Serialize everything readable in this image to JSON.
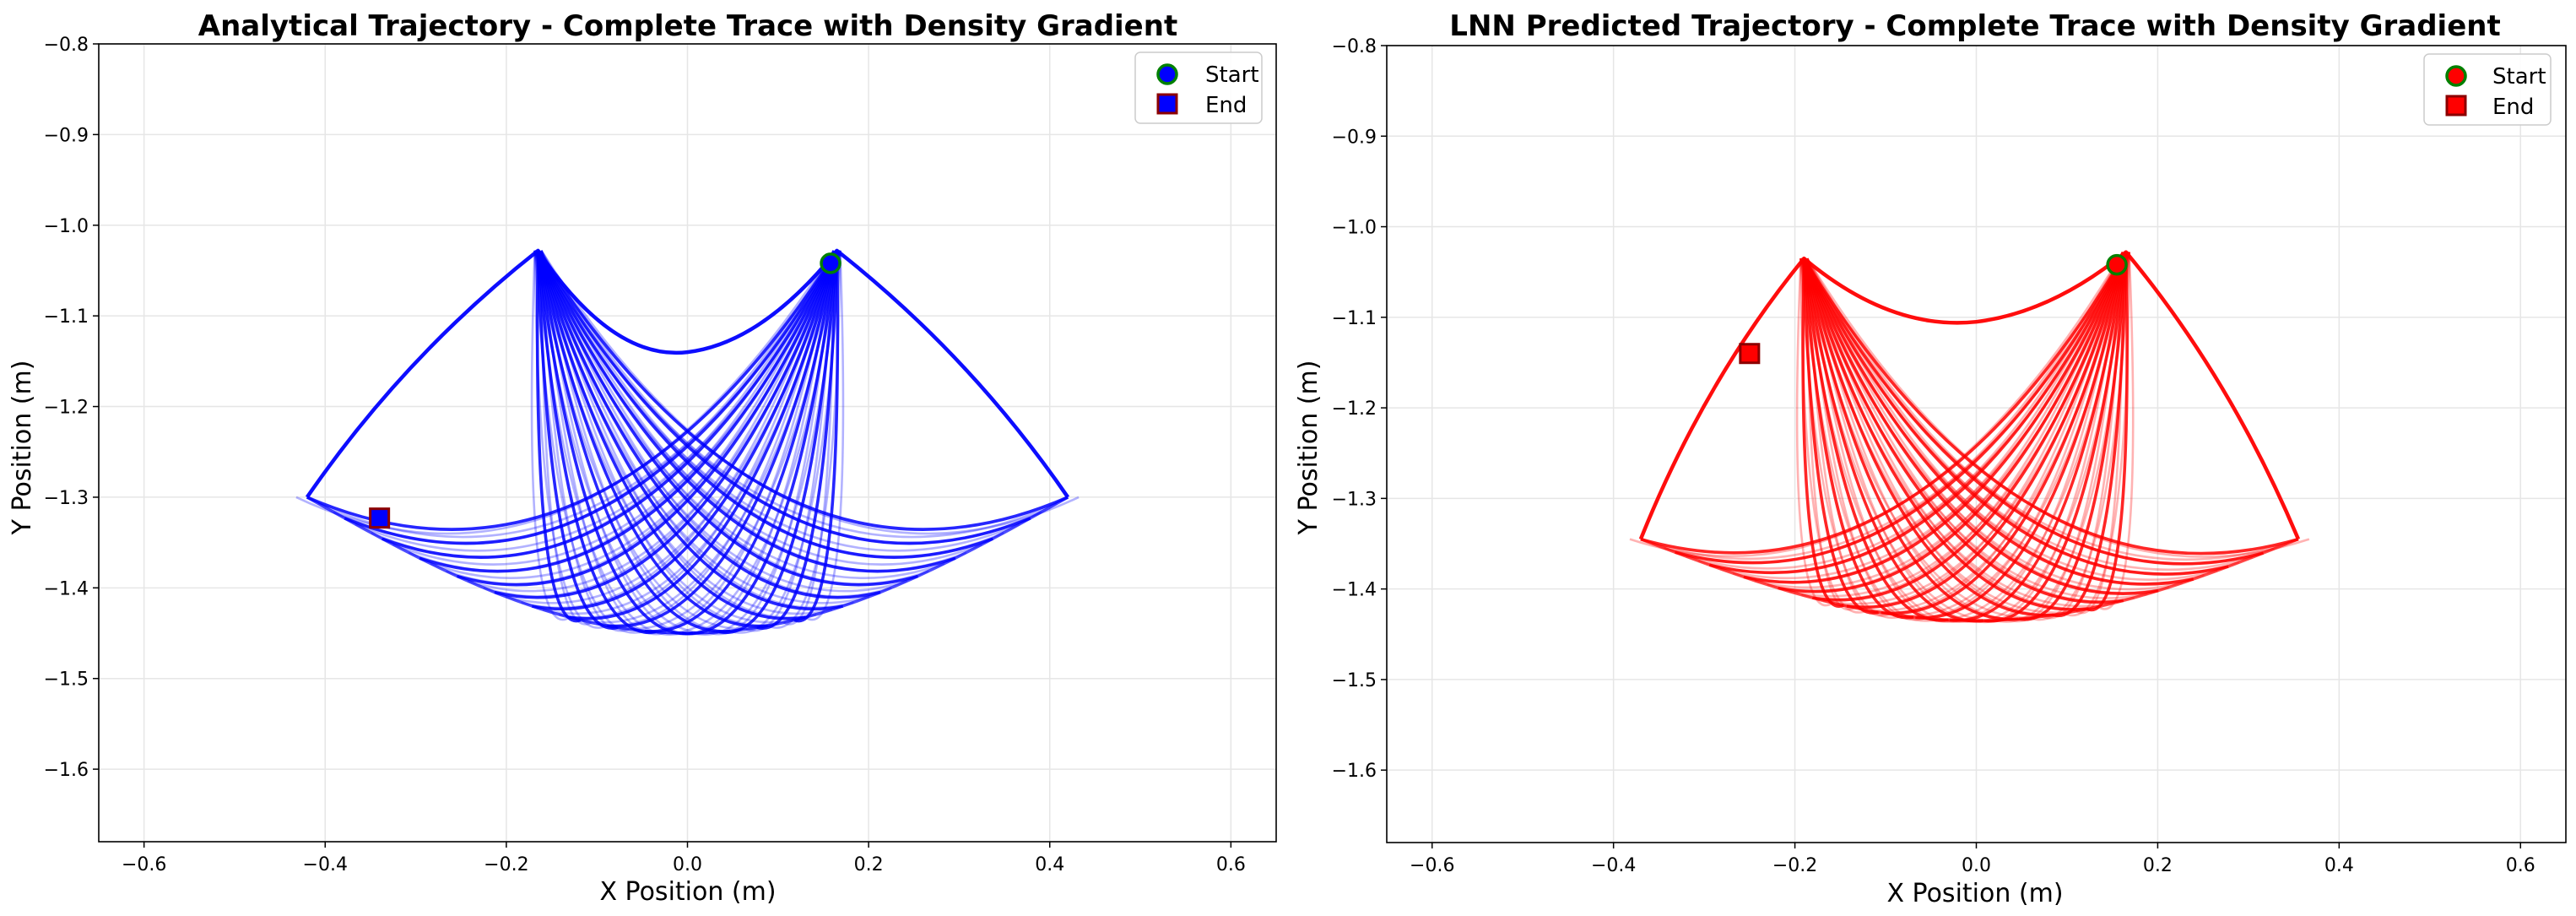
{
  "chart_data": [
    {
      "type": "line",
      "title": "Analytical Trajectory - Complete Trace with Density Gradient",
      "xlabel": "X Position (m)",
      "ylabel": "Y Position (m)",
      "xlim": [
        -0.65,
        0.65
      ],
      "ylim": [
        -1.68,
        -0.8
      ],
      "xticks": [
        -0.6,
        -0.4,
        -0.2,
        0.0,
        0.2,
        0.4,
        0.6
      ],
      "yticks": [
        -1.6,
        -1.5,
        -1.4,
        -1.3,
        -1.2,
        -1.1,
        -1.0,
        -0.9,
        -0.8
      ],
      "xtick_labels": [
        "−0.6",
        "−0.4",
        "−0.2",
        "0.0",
        "0.2",
        "0.4",
        "0.6"
      ],
      "ytick_labels": [
        "−1.6",
        "−1.5",
        "−1.4",
        "−1.3",
        "−1.2",
        "−1.1",
        "−1.0",
        "−0.9",
        "−0.8"
      ],
      "grid": true,
      "line_color": "#0000ff",
      "legend_position": "top-right",
      "legend": [
        {
          "label": "Start",
          "marker": "circle",
          "face": "#0000ff",
          "edge": "#008000"
        },
        {
          "label": "End",
          "marker": "square",
          "face": "#0000ff",
          "edge": "#8b0000"
        }
      ],
      "start": {
        "x": 0.158,
        "y": -1.042
      },
      "end": {
        "x": -0.34,
        "y": -1.323
      },
      "trajectory_envelope": {
        "left_tip": {
          "x": -0.42,
          "y": -1.3
        },
        "right_tip": {
          "x": 0.42,
          "y": -1.3
        },
        "left_peak": {
          "x": -0.165,
          "y": -1.028
        },
        "right_peak": {
          "x": 0.165,
          "y": -1.028
        },
        "center_saddle": {
          "x": 0.0,
          "y": -1.14
        },
        "lowest_y": -1.45
      }
    },
    {
      "type": "line",
      "title": "LNN Predicted Trajectory - Complete Trace with Density Gradient",
      "xlabel": "X Position (m)",
      "ylabel": "Y Position (m)",
      "xlim": [
        -0.65,
        0.65
      ],
      "ylim": [
        -1.68,
        -0.8
      ],
      "xticks": [
        -0.6,
        -0.4,
        -0.2,
        0.0,
        0.2,
        0.4,
        0.6
      ],
      "yticks": [
        -1.6,
        -1.5,
        -1.4,
        -1.3,
        -1.2,
        -1.1,
        -1.0,
        -0.9,
        -0.8
      ],
      "xtick_labels": [
        "−0.6",
        "−0.4",
        "−0.2",
        "0.0",
        "0.2",
        "0.4",
        "0.6"
      ],
      "ytick_labels": [
        "−1.6",
        "−1.5",
        "−1.4",
        "−1.3",
        "−1.2",
        "−1.1",
        "−1.0",
        "−0.9",
        "−0.8"
      ],
      "grid": true,
      "line_color": "#ff0000",
      "legend_position": "top-right",
      "legend": [
        {
          "label": "Start",
          "marker": "circle",
          "face": "#ff0000",
          "edge": "#008000"
        },
        {
          "label": "End",
          "marker": "square",
          "face": "#ff0000",
          "edge": "#8b0000"
        }
      ],
      "start": {
        "x": 0.155,
        "y": -1.042
      },
      "end": {
        "x": -0.25,
        "y": -1.14
      },
      "trajectory_envelope": {
        "left_tip": {
          "x": -0.37,
          "y": -1.345
        },
        "right_tip": {
          "x": 0.355,
          "y": -1.345
        },
        "left_peak": {
          "x": -0.19,
          "y": -1.035
        },
        "right_peak": {
          "x": 0.165,
          "y": -1.028
        },
        "center_saddle": {
          "x": 0.0,
          "y": -1.105
        },
        "lowest_y": -1.435
      }
    }
  ]
}
